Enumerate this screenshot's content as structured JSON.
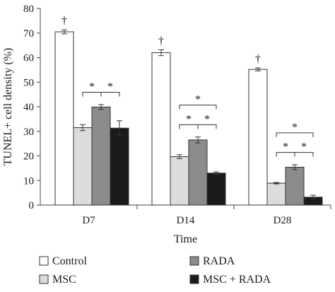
{
  "chart_data": {
    "type": "bar",
    "xlabel": "Time",
    "ylabel": "TUNEL+ cell density (%)",
    "ylim": [
      0,
      80
    ],
    "yticks": [
      0,
      10,
      20,
      30,
      40,
      50,
      60,
      70,
      80
    ],
    "grid": false,
    "legend_position": "bottom",
    "categories": [
      "D7",
      "D14",
      "D28"
    ],
    "series": [
      {
        "name": "Control",
        "color": "#ffffff",
        "values": [
          70.5,
          62.0,
          55.2
        ],
        "errors": [
          0.8,
          1.2,
          0.6
        ]
      },
      {
        "name": "MSC",
        "color": "#dcdcdc",
        "values": [
          31.5,
          19.7,
          8.9
        ],
        "errors": [
          1.2,
          0.8,
          0.3
        ]
      },
      {
        "name": "RADA",
        "color": "#8c8c8c",
        "values": [
          39.9,
          26.5,
          15.4
        ],
        "errors": [
          1.0,
          1.2,
          1.0
        ]
      },
      {
        "name": "MSC + RADA",
        "color": "#1a1a1a",
        "values": [
          31.3,
          13.0,
          3.2
        ],
        "errors": [
          3.0,
          0.5,
          0.8
        ]
      }
    ],
    "annotations": [
      {
        "text": "†",
        "category": "D7",
        "series": "Control"
      },
      {
        "text": "†",
        "category": "D14",
        "series": "Control"
      },
      {
        "text": "†",
        "category": "D28",
        "series": "Control"
      },
      {
        "text": "*",
        "category": "D7",
        "from": "MSC",
        "to": "RADA"
      },
      {
        "text": "*",
        "category": "D7",
        "from": "RADA",
        "to": "MSC + RADA"
      },
      {
        "text": "*",
        "category": "D14",
        "from": "MSC",
        "to": "RADA"
      },
      {
        "text": "*",
        "category": "D14",
        "from": "RADA",
        "to": "MSC + RADA"
      },
      {
        "text": "*",
        "category": "D14",
        "from": "MSC",
        "to": "MSC + RADA"
      },
      {
        "text": "*",
        "category": "D28",
        "from": "MSC",
        "to": "RADA"
      },
      {
        "text": "*",
        "category": "D28",
        "from": "RADA",
        "to": "MSC + RADA"
      },
      {
        "text": "*",
        "category": "D28",
        "from": "MSC",
        "to": "MSC + RADA"
      }
    ]
  }
}
